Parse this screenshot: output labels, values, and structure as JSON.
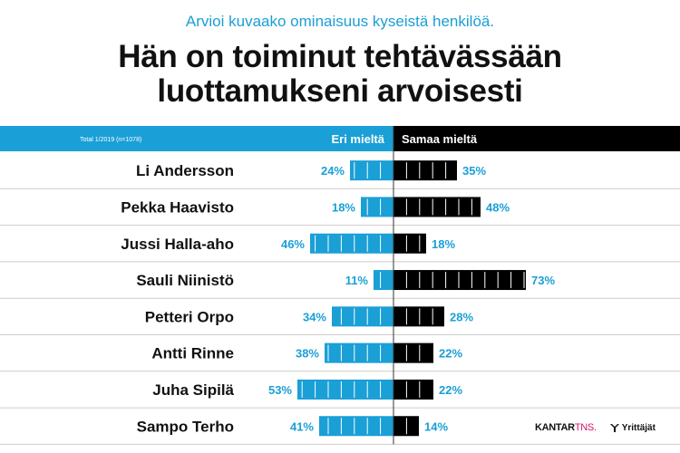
{
  "header": {
    "subtitle": "Arvioi kuvaako ominaisuus kyseistä henkilöä.",
    "title_line1": "Hän on toiminut tehtävässään",
    "title_line2": "luottamukseni arvoisesti"
  },
  "legend": {
    "source_note": "Total 1/2019 (n=1078)",
    "disagree_label": "Eri mieltä",
    "agree_label": "Samaa mieltä"
  },
  "colors": {
    "disagree": "#1a9fd6",
    "agree": "#000000",
    "divider": "#cccccc"
  },
  "chart_data": {
    "type": "bar",
    "orientation": "diverging-horizontal",
    "categories": [
      "Li Andersson",
      "Pekka Haavisto",
      "Jussi Halla-aho",
      "Sauli Niinistö",
      "Petteri Orpo",
      "Antti Rinne",
      "Juha Sipilä",
      "Sampo Terho"
    ],
    "series": [
      {
        "name": "Eri mieltä",
        "values": [
          24,
          18,
          46,
          11,
          34,
          38,
          53,
          41
        ],
        "labels": [
          "24%",
          "18%",
          "46%",
          "11%",
          "34%",
          "38%",
          "53%",
          "41%"
        ]
      },
      {
        "name": "Samaa mieltä",
        "values": [
          35,
          48,
          18,
          73,
          28,
          22,
          22,
          14
        ],
        "labels": [
          "35%",
          "48%",
          "18%",
          "73%",
          "28%",
          "22%",
          "22%",
          "14%"
        ]
      }
    ],
    "unit": "%",
    "title": "Hän on toiminut tehtävässään luottamukseni arvoisesti",
    "legend": "top"
  },
  "footer": {
    "brand_kantar": "KANTAR",
    "brand_tns": "TNS.",
    "brand_yrittajat": "Yrittäjät"
  }
}
